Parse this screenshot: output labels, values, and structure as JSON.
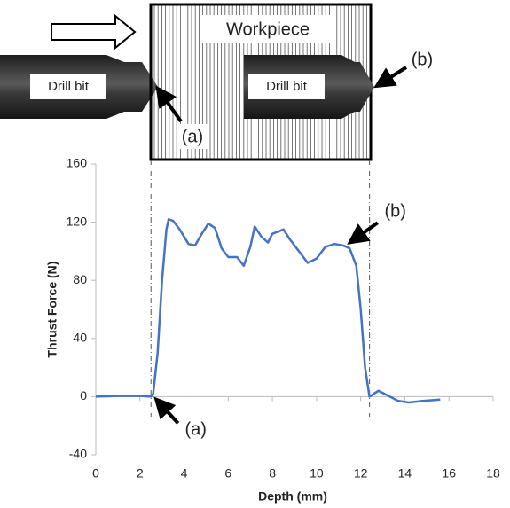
{
  "diagram": {
    "workpiece_label": "Workpiece",
    "drill_left_label": "Drill bit",
    "drill_right_label": "Drill bit",
    "point_a": "(a)",
    "point_b": "(b)"
  },
  "chart_data": {
    "type": "line",
    "x": [
      0,
      1,
      2,
      2.5,
      2.6,
      2.8,
      3.0,
      3.2,
      3.3,
      3.5,
      3.8,
      4.2,
      4.5,
      4.8,
      5.1,
      5.4,
      5.7,
      6.0,
      6.4,
      6.7,
      7.0,
      7.2,
      7.5,
      7.8,
      8.0,
      8.5,
      8.8,
      9.2,
      9.6,
      10.0,
      10.4,
      10.8,
      11.2,
      11.5,
      11.8,
      12.0,
      12.2,
      12.4,
      12.6,
      12.8,
      13.2,
      13.7,
      14.2,
      14.8,
      15.6
    ],
    "series": [
      {
        "color": "#4472c4",
        "values": [
          0,
          0.5,
          0.5,
          0,
          2,
          30,
          80,
          115,
          122,
          121,
          115,
          105,
          104,
          112,
          119,
          116,
          102,
          96,
          96,
          90,
          103,
          117,
          110,
          106,
          112,
          115,
          108,
          100,
          92,
          95,
          103,
          105,
          104,
          102,
          90,
          60,
          20,
          0,
          2,
          4,
          1,
          -3,
          -4,
          -3,
          -2
        ]
      }
    ],
    "xlabel": "Depth (mm)",
    "ylabel": "Thrust Force (N)",
    "xlim": [
      0,
      18
    ],
    "xticks": [
      0,
      2,
      4,
      6,
      8,
      10,
      12,
      14,
      16,
      18
    ],
    "ylim": [
      -40,
      160
    ],
    "yticks": [
      -40,
      0,
      40,
      80,
      120,
      160
    ],
    "vlines": [
      2.5,
      12.4
    ],
    "annotations": [
      {
        "text": "(a)",
        "x": 2.6,
        "y": 0
      },
      {
        "text": "(b)",
        "x": 11.4,
        "y": 105
      }
    ]
  }
}
